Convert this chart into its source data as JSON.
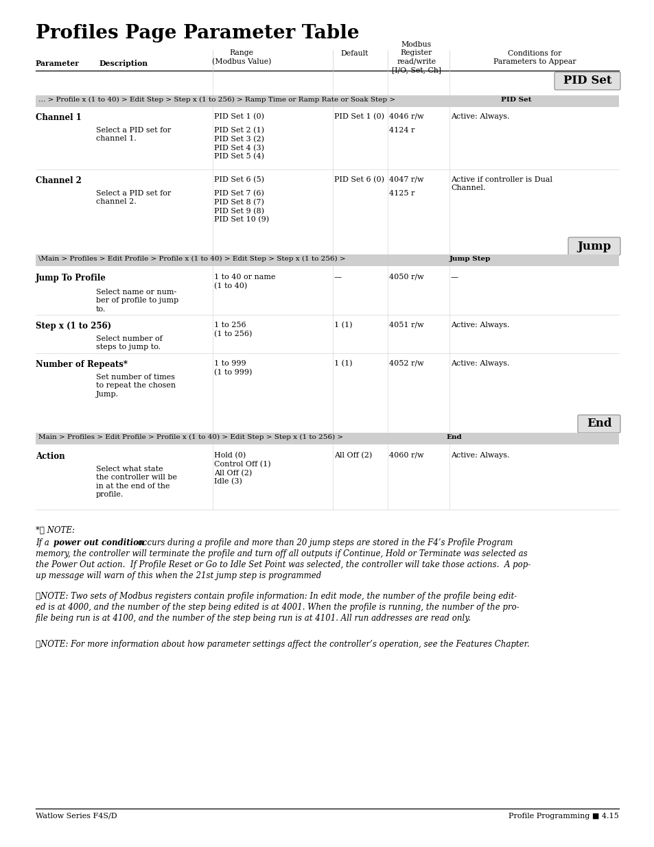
{
  "title": "Profiles Page Parameter Table",
  "footer_left": "Watlow Series F4S/D",
  "footer_right": "Profile Programming ■ 4.15"
}
